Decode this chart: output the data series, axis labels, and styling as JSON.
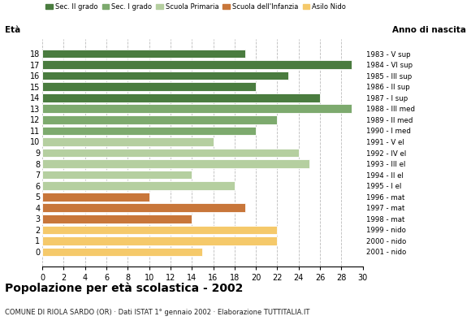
{
  "ages": [
    18,
    17,
    16,
    15,
    14,
    13,
    12,
    11,
    10,
    9,
    8,
    7,
    6,
    5,
    4,
    3,
    2,
    1,
    0
  ],
  "values": [
    19,
    29,
    23,
    20,
    26,
    29,
    22,
    20,
    16,
    24,
    25,
    14,
    18,
    10,
    19,
    14,
    22,
    22,
    15
  ],
  "anni_nascita": [
    "1983 - V sup",
    "1984 - VI sup",
    "1985 - III sup",
    "1986 - II sup",
    "1987 - I sup",
    "1988 - III med",
    "1989 - II med",
    "1990 - I med",
    "1991 - V el",
    "1992 - IV el",
    "1993 - III el",
    "1994 - II el",
    "1995 - I el",
    "1996 - mat",
    "1997 - mat",
    "1998 - mat",
    "1999 - nido",
    "2000 - nido",
    "2001 - nido"
  ],
  "colors": [
    "#4a7c3f",
    "#4a7c3f",
    "#4a7c3f",
    "#4a7c3f",
    "#4a7c3f",
    "#7daa6e",
    "#7daa6e",
    "#7daa6e",
    "#b5cfa0",
    "#b5cfa0",
    "#b5cfa0",
    "#b5cfa0",
    "#b5cfa0",
    "#c8763a",
    "#c8763a",
    "#c8763a",
    "#f5c96a",
    "#f5c96a",
    "#f5c96a"
  ],
  "legend_labels": [
    "Sec. II grado",
    "Sec. I grado",
    "Scuola Primaria",
    "Scuola dell'Infanzia",
    "Asilo Nido"
  ],
  "legend_colors": [
    "#4a7c3f",
    "#7daa6e",
    "#b5cfa0",
    "#c8763a",
    "#f5c96a"
  ],
  "title": "Popolazione per età scolastica - 2002",
  "subtitle": "COMUNE DI RIOLA SARDO (OR) · Dati ISTAT 1° gennaio 2002 · Elaborazione TUTTITALIA.IT",
  "label_eta": "Età",
  "label_anno": "Anno di nascita",
  "xlim": [
    0,
    30
  ],
  "xticks": [
    0,
    2,
    4,
    6,
    8,
    10,
    12,
    14,
    16,
    18,
    20,
    22,
    24,
    26,
    28,
    30
  ],
  "background_color": "#ffffff",
  "grid_color": "#bbbbbb"
}
